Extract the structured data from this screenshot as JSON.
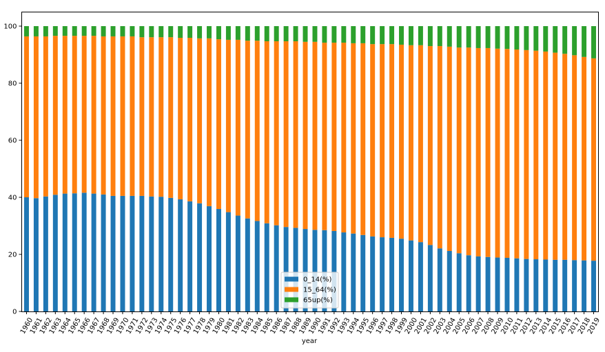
{
  "chart_data": {
    "type": "bar",
    "stacked": true,
    "title": "",
    "xlabel": "year",
    "ylabel": "",
    "ylim": [
      0,
      105
    ],
    "yticks": [
      0,
      20,
      40,
      60,
      80,
      100
    ],
    "grid": false,
    "legend_position": "bottom-center",
    "categories": [
      "1960",
      "1961",
      "1962",
      "1963",
      "1964",
      "1965",
      "1966",
      "1967",
      "1968",
      "1969",
      "1970",
      "1971",
      "1972",
      "1973",
      "1974",
      "1975",
      "1976",
      "1977",
      "1978",
      "1979",
      "1980",
      "1981",
      "1982",
      "1983",
      "1984",
      "1985",
      "1986",
      "1987",
      "1988",
      "1989",
      "1990",
      "1991",
      "1992",
      "1993",
      "1994",
      "1995",
      "1996",
      "1997",
      "1998",
      "1999",
      "2000",
      "2001",
      "2002",
      "2003",
      "2004",
      "2005",
      "2006",
      "2007",
      "2008",
      "2009",
      "2010",
      "2011",
      "2012",
      "2013",
      "2014",
      "2015",
      "2016",
      "2017",
      "2018",
      "2019"
    ],
    "series": [
      {
        "name": "0_14(%)",
        "color": "#1f77b4",
        "values": [
          40,
          39.7,
          40.3,
          40.9,
          41.3,
          41.4,
          41.6,
          41.3,
          41.0,
          40.5,
          40.5,
          40.5,
          40.5,
          40.3,
          40.2,
          39.8,
          39.3,
          38.6,
          37.9,
          36.9,
          35.9,
          34.8,
          33.6,
          32.6,
          31.7,
          30.9,
          30.2,
          29.6,
          29.3,
          28.9,
          28.6,
          28.5,
          28.2,
          27.7,
          27.3,
          26.8,
          26.3,
          26.0,
          25.8,
          25.5,
          24.9,
          24.3,
          23.3,
          22.1,
          21.2,
          20.4,
          19.7,
          19.3,
          19.1,
          18.9,
          18.8,
          18.6,
          18.4,
          18.3,
          18.2,
          18.1,
          18.1,
          18.0,
          17.9,
          17.8
        ]
      },
      {
        "name": "15_64(%)",
        "color": "#ff7f0e",
        "values": [
          56.4,
          56.7,
          56.1,
          55.7,
          55.3,
          55.2,
          55.0,
          55.3,
          55.4,
          55.9,
          55.9,
          55.9,
          55.6,
          55.8,
          55.9,
          56.3,
          56.6,
          57.3,
          57.8,
          58.8,
          59.5,
          60.4,
          61.6,
          62.3,
          63.2,
          63.8,
          64.5,
          65.1,
          65.4,
          65.6,
          65.9,
          65.7,
          66.0,
          66.5,
          66.7,
          67.2,
          67.4,
          67.7,
          67.9,
          68.0,
          68.4,
          69.0,
          69.7,
          70.9,
          71.6,
          72.1,
          72.8,
          73.0,
          73.2,
          73.2,
          73.2,
          73.2,
          73.2,
          73.1,
          72.9,
          72.6,
          72.2,
          71.8,
          71.3,
          70.9
        ]
      },
      {
        "name": "65up(%)",
        "color": "#2ca02c",
        "values": [
          3.6,
          3.6,
          3.6,
          3.4,
          3.4,
          3.4,
          3.4,
          3.4,
          3.6,
          3.6,
          3.6,
          3.6,
          3.9,
          3.9,
          3.9,
          3.9,
          4.1,
          4.1,
          4.3,
          4.3,
          4.6,
          4.8,
          4.8,
          5.1,
          5.1,
          5.3,
          5.3,
          5.3,
          5.3,
          5.5,
          5.5,
          5.8,
          5.8,
          5.8,
          6.0,
          6.0,
          6.3,
          6.3,
          6.3,
          6.5,
          6.7,
          6.7,
          7.0,
          7.0,
          7.2,
          7.5,
          7.5,
          7.7,
          7.7,
          7.9,
          8.0,
          8.2,
          8.4,
          8.6,
          8.9,
          9.3,
          9.7,
          10.2,
          10.8,
          11.3
        ]
      }
    ]
  }
}
